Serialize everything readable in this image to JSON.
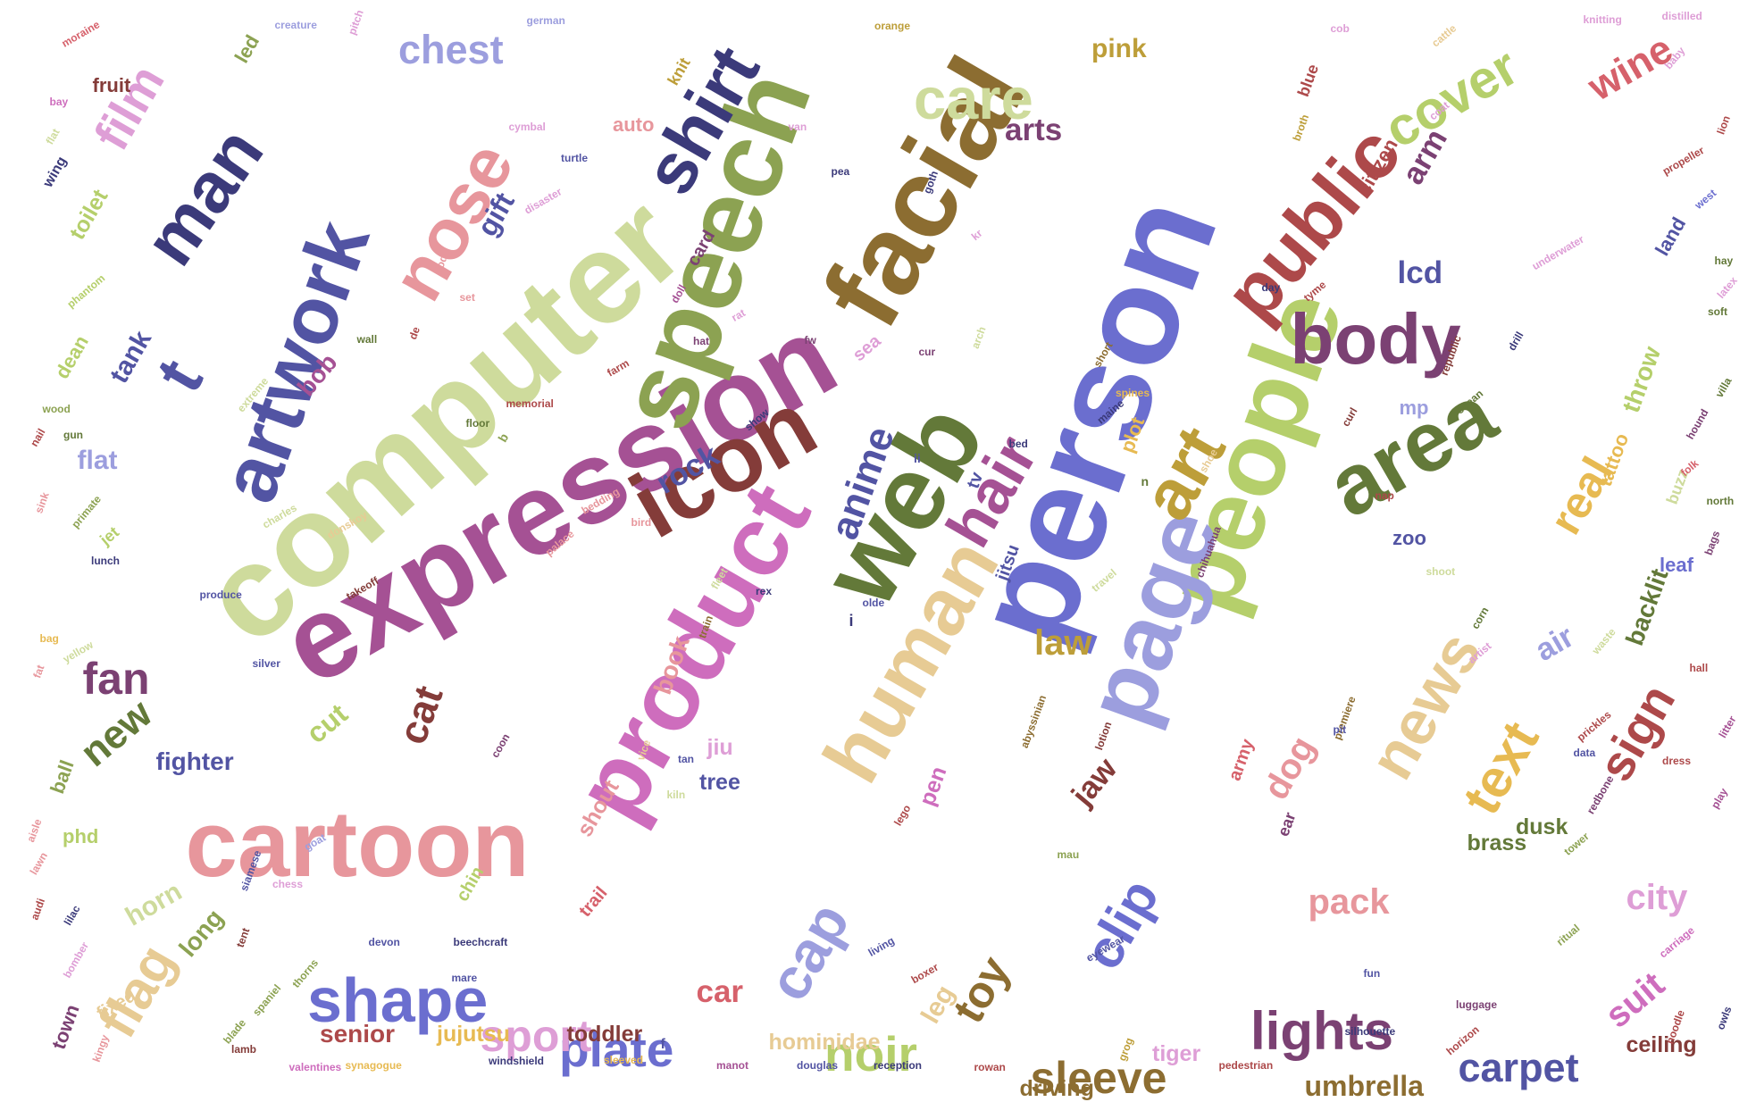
{
  "palette": {
    "navy": "#3b3a7a",
    "slate_blue": "#5254a3",
    "periwinkle": "#6b6ecf",
    "lavender_blue": "#9c9ede",
    "olive_dark": "#637939",
    "olive": "#8ca252",
    "lime": "#b5cf6b",
    "pale_lime": "#cedb9c",
    "brown": "#8c6d31",
    "gold": "#bd9e39",
    "mustard": "#e7ba52",
    "sand": "#e7cb94",
    "maroon": "#843c39",
    "red": "#ad494a",
    "rose": "#d6616b",
    "pink": "#e7969c",
    "plum": "#7b4173",
    "magenta": "#a55194",
    "orchid": "#ce6dbd",
    "light_orchid": "#de9ed6"
  },
  "words": [
    {
      "text": "person",
      "color": "periwinkle"
    },
    {
      "text": "computer",
      "color": "pale_lime"
    },
    {
      "text": "expression",
      "color": "magenta"
    },
    {
      "text": "speech",
      "color": "olive"
    },
    {
      "text": "facial",
      "color": "brown"
    },
    {
      "text": "web",
      "color": "olive_dark"
    },
    {
      "text": "people",
      "color": "lime"
    },
    {
      "text": "product",
      "color": "orchid"
    },
    {
      "text": "icon",
      "color": "maroon"
    },
    {
      "text": "page",
      "color": "lavender_blue"
    },
    {
      "text": "human",
      "color": "sand"
    },
    {
      "text": "cartoon",
      "color": "pink"
    },
    {
      "text": "area",
      "color": "olive_dark"
    },
    {
      "text": "artwork",
      "color": "slate_blue"
    },
    {
      "text": "public",
      "color": "red"
    },
    {
      "text": "shirt",
      "color": "navy"
    },
    {
      "text": "art",
      "color": "gold"
    },
    {
      "text": "nose",
      "color": "pink"
    },
    {
      "text": "man",
      "color": "navy"
    },
    {
      "text": "body",
      "color": "plum"
    },
    {
      "text": "shape",
      "color": "periwinkle"
    },
    {
      "text": "hair",
      "color": "magenta"
    },
    {
      "text": "news",
      "color": "sand"
    },
    {
      "text": "text",
      "color": "mustard"
    },
    {
      "text": "cap",
      "color": "lavender_blue"
    },
    {
      "text": "clip",
      "color": "periwinkle"
    },
    {
      "text": "care",
      "color": "pale_lime"
    },
    {
      "text": "cover",
      "color": "lime"
    },
    {
      "text": "lights",
      "color": "plum"
    },
    {
      "text": "t",
      "color": "slate_blue"
    },
    {
      "text": "film",
      "color": "light_orchid"
    },
    {
      "text": "flag",
      "color": "sand"
    },
    {
      "text": "sign",
      "color": "red"
    },
    {
      "text": "toy",
      "color": "brown"
    },
    {
      "text": "anime",
      "color": "slate_blue"
    },
    {
      "text": "sleeve",
      "color": "brown"
    },
    {
      "text": "real",
      "color": "mustard"
    },
    {
      "text": "plate",
      "color": "periwinkle"
    },
    {
      "text": "carpet",
      "color": "slate_blue"
    },
    {
      "text": "sport",
      "color": "light_orchid"
    },
    {
      "text": "noir",
      "color": "lime"
    },
    {
      "text": "wine",
      "color": "rose"
    },
    {
      "text": "chest",
      "color": "lavender_blue"
    },
    {
      "text": "cat",
      "color": "maroon"
    },
    {
      "text": "fan",
      "color": "plum"
    },
    {
      "text": "new",
      "color": "olive_dark"
    },
    {
      "text": "suit",
      "color": "orchid"
    },
    {
      "text": "city",
      "color": "light_orchid"
    },
    {
      "text": "arm",
      "color": "plum"
    },
    {
      "text": "arts",
      "color": "plum"
    },
    {
      "text": "dog",
      "color": "pink"
    },
    {
      "text": "pack",
      "color": "pink"
    },
    {
      "text": "umbrella",
      "color": "brown"
    },
    {
      "text": "lcd",
      "color": "slate_blue"
    },
    {
      "text": "law",
      "color": "gold"
    },
    {
      "text": "jaw",
      "color": "maroon"
    },
    {
      "text": "air",
      "color": "lavender_blue"
    },
    {
      "text": "backlit",
      "color": "olive_dark"
    },
    {
      "text": "throw",
      "color": "lime"
    },
    {
      "text": "rock",
      "color": "slate_blue"
    },
    {
      "text": "gift",
      "color": "slate_blue"
    },
    {
      "text": "cut",
      "color": "lime"
    },
    {
      "text": "tank",
      "color": "slate_blue"
    },
    {
      "text": "bob",
      "color": "magenta"
    },
    {
      "text": "pink",
      "color": "gold"
    },
    {
      "text": "car",
      "color": "rose"
    },
    {
      "text": "horn",
      "color": "pale_lime"
    },
    {
      "text": "long",
      "color": "olive"
    },
    {
      "text": "book",
      "color": "pink"
    },
    {
      "text": "driving",
      "color": "brown"
    },
    {
      "text": "tiger",
      "color": "light_orchid"
    },
    {
      "text": "ceiling",
      "color": "maroon"
    },
    {
      "text": "shout",
      "color": "pink"
    },
    {
      "text": "pen",
      "color": "orchid"
    },
    {
      "text": "leg",
      "color": "sand"
    },
    {
      "text": "toilet",
      "color": "lime"
    },
    {
      "text": "led",
      "color": "olive"
    },
    {
      "text": "fruit",
      "color": "maroon"
    },
    {
      "text": "flat",
      "color": "lavender_blue"
    },
    {
      "text": "dean",
      "color": "lime"
    },
    {
      "text": "fighter",
      "color": "slate_blue"
    },
    {
      "text": "senior",
      "color": "red"
    },
    {
      "text": "jujutsu",
      "color": "mustard"
    },
    {
      "text": "toddler",
      "color": "maroon"
    },
    {
      "text": "hominidae",
      "color": "sand"
    },
    {
      "text": "tv",
      "color": "slate_blue"
    },
    {
      "text": "jitsu",
      "color": "slate_blue"
    },
    {
      "text": "jiu",
      "color": "light_orchid"
    },
    {
      "text": "tree",
      "color": "slate_blue"
    },
    {
      "text": "mp",
      "color": "lavender_blue"
    },
    {
      "text": "tattoo",
      "color": "mustard"
    },
    {
      "text": "leaf",
      "color": "periwinkle"
    },
    {
      "text": "buzz",
      "color": "pale_lime"
    },
    {
      "text": "dusk",
      "color": "olive_dark"
    },
    {
      "text": "brass",
      "color": "olive_dark"
    },
    {
      "text": "citizen",
      "color": "red"
    },
    {
      "text": "zoo",
      "color": "slate_blue"
    },
    {
      "text": "plot",
      "color": "mustard"
    },
    {
      "text": "auto",
      "color": "pink"
    },
    {
      "text": "knit",
      "color": "gold"
    },
    {
      "text": "blue",
      "color": "red"
    },
    {
      "text": "land",
      "color": "slate_blue"
    },
    {
      "text": "army",
      "color": "rose"
    },
    {
      "text": "ear",
      "color": "plum"
    },
    {
      "text": "ball",
      "color": "olive"
    },
    {
      "text": "phd",
      "color": "lime"
    },
    {
      "text": "town",
      "color": "plum"
    },
    {
      "text": "fixed",
      "color": "sand"
    },
    {
      "text": "trail",
      "color": "rose"
    },
    {
      "text": "card",
      "color": "plum"
    },
    {
      "text": "sea",
      "color": "light_orchid"
    },
    {
      "text": "chin",
      "color": "lime"
    },
    {
      "text": "wing",
      "color": "navy"
    },
    {
      "text": "jet",
      "color": "lime"
    },
    {
      "text": "distilled",
      "color": "light_orchid"
    },
    {
      "text": "knitting",
      "color": "light_orchid"
    },
    {
      "text": "baby",
      "color": "light_orchid"
    },
    {
      "text": "lion",
      "color": "red"
    },
    {
      "text": "cattle",
      "color": "sand"
    },
    {
      "text": "cob",
      "color": "light_orchid"
    },
    {
      "text": "coat",
      "color": "light_orchid"
    },
    {
      "text": "broth",
      "color": "gold"
    },
    {
      "text": "propeller",
      "color": "red"
    },
    {
      "text": "west",
      "color": "periwinkle"
    },
    {
      "text": "hay",
      "color": "olive_dark"
    },
    {
      "text": "latex",
      "color": "light_orchid"
    },
    {
      "text": "soft",
      "color": "olive_dark"
    },
    {
      "text": "villa",
      "color": "olive_dark"
    },
    {
      "text": "hound",
      "color": "plum"
    },
    {
      "text": "folk",
      "color": "rose"
    },
    {
      "text": "north",
      "color": "olive_dark"
    },
    {
      "text": "bags",
      "color": "plum"
    },
    {
      "text": "republic",
      "color": "maroon"
    },
    {
      "text": "underwater",
      "color": "light_orchid"
    },
    {
      "text": "ocean",
      "color": "olive_dark"
    },
    {
      "text": "orange",
      "color": "gold"
    },
    {
      "text": "german",
      "color": "lavender_blue"
    },
    {
      "text": "creature",
      "color": "lavender_blue"
    },
    {
      "text": "pitch",
      "color": "light_orchid"
    },
    {
      "text": "moraine",
      "color": "rose"
    },
    {
      "text": "bay",
      "color": "orchid"
    },
    {
      "text": "flat",
      "color": "pale_lime"
    },
    {
      "text": "cymbal",
      "color": "light_orchid"
    },
    {
      "text": "van",
      "color": "light_orchid"
    },
    {
      "text": "pea",
      "color": "navy"
    },
    {
      "text": "goth",
      "color": "navy"
    },
    {
      "text": "turtle",
      "color": "slate_blue"
    },
    {
      "text": "disaster",
      "color": "light_orchid"
    },
    {
      "text": "doll",
      "color": "magenta"
    },
    {
      "text": "rat",
      "color": "light_orchid"
    },
    {
      "text": "hat",
      "color": "plum"
    },
    {
      "text": "phantom",
      "color": "lime"
    },
    {
      "text": "wall",
      "color": "olive_dark"
    },
    {
      "text": "set",
      "color": "pink"
    },
    {
      "text": "dodo",
      "color": "pink"
    },
    {
      "text": "de",
      "color": "red"
    },
    {
      "text": "farm",
      "color": "red"
    },
    {
      "text": "fw",
      "color": "plum"
    },
    {
      "text": "cur",
      "color": "plum"
    },
    {
      "text": "arch",
      "color": "pale_lime"
    },
    {
      "text": "tyme",
      "color": "red"
    },
    {
      "text": "day",
      "color": "navy"
    },
    {
      "text": "drill",
      "color": "navy"
    },
    {
      "text": "short",
      "color": "brown"
    },
    {
      "text": "wood",
      "color": "olive"
    },
    {
      "text": "gun",
      "color": "olive_dark"
    },
    {
      "text": "nail",
      "color": "red"
    },
    {
      "text": "sink",
      "color": "pink"
    },
    {
      "text": "primate",
      "color": "olive"
    },
    {
      "text": "extreme",
      "color": "pale_lime"
    },
    {
      "text": "memorial",
      "color": "red"
    },
    {
      "text": "floor",
      "color": "olive_dark"
    },
    {
      "text": "show",
      "color": "navy"
    },
    {
      "text": "maine",
      "color": "navy"
    },
    {
      "text": "spines",
      "color": "mustard"
    },
    {
      "text": "curl",
      "color": "maroon"
    },
    {
      "text": "shoe",
      "color": "sand"
    },
    {
      "text": "bed",
      "color": "navy"
    },
    {
      "text": "charles",
      "color": "pale_lime"
    },
    {
      "text": "donskoy",
      "color": "sand"
    },
    {
      "text": "bedding",
      "color": "pink"
    },
    {
      "text": "bird",
      "color": "pink"
    },
    {
      "text": "palace",
      "color": "pink"
    },
    {
      "text": "lunch",
      "color": "navy"
    },
    {
      "text": "produce",
      "color": "slate_blue"
    },
    {
      "text": "takeoff",
      "color": "maroon"
    },
    {
      "text": "bag",
      "color": "mustard"
    },
    {
      "text": "yellow",
      "color": "pale_lime"
    },
    {
      "text": "silver",
      "color": "slate_blue"
    },
    {
      "text": "fleet",
      "color": "pale_lime"
    },
    {
      "text": "train",
      "color": "brown"
    },
    {
      "text": "rex",
      "color": "navy"
    },
    {
      "text": "olde",
      "color": "slate_blue"
    },
    {
      "text": "travel",
      "color": "pale_lime"
    },
    {
      "text": "chihuahua",
      "color": "plum"
    },
    {
      "text": "nap",
      "color": "red"
    },
    {
      "text": "shoot",
      "color": "pale_lime"
    },
    {
      "text": "corn",
      "color": "olive_dark"
    },
    {
      "text": "waste",
      "color": "pale_lime"
    },
    {
      "text": "artist",
      "color": "light_orchid"
    },
    {
      "text": "premiere",
      "color": "brown"
    },
    {
      "text": "abyssinian",
      "color": "brown"
    },
    {
      "text": "lotion",
      "color": "maroon"
    },
    {
      "text": "mau",
      "color": "olive"
    },
    {
      "text": "lego",
      "color": "red"
    },
    {
      "text": "pit",
      "color": "slate_blue"
    },
    {
      "text": "data",
      "color": "slate_blue"
    },
    {
      "text": "prickles",
      "color": "red"
    },
    {
      "text": "hall",
      "color": "red"
    },
    {
      "text": "litter",
      "color": "magenta"
    },
    {
      "text": "dress",
      "color": "red"
    },
    {
      "text": "play",
      "color": "magenta"
    },
    {
      "text": "redbone",
      "color": "plum"
    },
    {
      "text": "tower",
      "color": "olive"
    },
    {
      "text": "ritual",
      "color": "olive"
    },
    {
      "text": "carriage",
      "color": "orchid"
    },
    {
      "text": "noodle",
      "color": "red"
    },
    {
      "text": "owls",
      "color": "navy"
    },
    {
      "text": "luggage",
      "color": "plum"
    },
    {
      "text": "horizon",
      "color": "red"
    },
    {
      "text": "fun",
      "color": "slate_blue"
    },
    {
      "text": "eyewear",
      "color": "slate_blue"
    },
    {
      "text": "living",
      "color": "slate_blue"
    },
    {
      "text": "boxer",
      "color": "red"
    },
    {
      "text": "pedestrian",
      "color": "red"
    },
    {
      "text": "silhouette",
      "color": "navy"
    },
    {
      "text": "grog",
      "color": "gold"
    },
    {
      "text": "rowan",
      "color": "red"
    },
    {
      "text": "reception",
      "color": "navy"
    },
    {
      "text": "douglas",
      "color": "slate_blue"
    },
    {
      "text": "manot",
      "color": "magenta"
    },
    {
      "text": "windshield",
      "color": "navy"
    },
    {
      "text": "sleeved",
      "color": "mustard"
    },
    {
      "text": "synagogue",
      "color": "mustard"
    },
    {
      "text": "valentines",
      "color": "orchid"
    },
    {
      "text": "lamb",
      "color": "maroon"
    },
    {
      "text": "blade",
      "color": "olive"
    },
    {
      "text": "spaniel",
      "color": "olive"
    },
    {
      "text": "thorns",
      "color": "olive"
    },
    {
      "text": "tent",
      "color": "maroon"
    },
    {
      "text": "mare",
      "color": "slate_blue"
    },
    {
      "text": "devon",
      "color": "slate_blue"
    },
    {
      "text": "beechcraft",
      "color": "navy"
    },
    {
      "text": "chess",
      "color": "light_orchid"
    },
    {
      "text": "siamese",
      "color": "slate_blue"
    },
    {
      "text": "goat",
      "color": "lavender_blue"
    },
    {
      "text": "aisle",
      "color": "pink"
    },
    {
      "text": "lawn",
      "color": "pink"
    },
    {
      "text": "audi",
      "color": "red"
    },
    {
      "text": "lilac",
      "color": "navy"
    },
    {
      "text": "bomber",
      "color": "light_orchid"
    },
    {
      "text": "kingy",
      "color": "pink"
    },
    {
      "text": "coon",
      "color": "plum"
    },
    {
      "text": "tan",
      "color": "slate_blue"
    },
    {
      "text": "vice",
      "color": "sand"
    },
    {
      "text": "kiln",
      "color": "pale_lime"
    },
    {
      "text": "fat",
      "color": "pink"
    },
    {
      "text": "b",
      "color": "olive"
    },
    {
      "text": "i",
      "color": "navy"
    },
    {
      "text": "f",
      "color": "slate_blue"
    },
    {
      "text": "n",
      "color": "olive_dark"
    },
    {
      "text": "ii",
      "color": "slate_blue"
    },
    {
      "text": "kr",
      "color": "light_orchid"
    }
  ]
}
